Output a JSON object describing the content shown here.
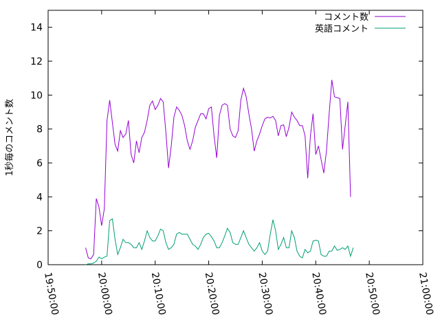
{
  "chart_data": {
    "type": "line",
    "title": "",
    "xlabel": "",
    "ylabel": "1秒毎のコメント数",
    "x_start": "19:50:00",
    "x_end": "21:00:00",
    "x_ticks": [
      "19:50:00",
      "20:00:00",
      "20:10:00",
      "20:20:00",
      "20:30:00",
      "20:40:00",
      "20:50:00",
      "21:00:00"
    ],
    "ylim": [
      0,
      15
    ],
    "y_ticks": [
      "0",
      "2",
      "4",
      "6",
      "8",
      "10",
      "12",
      "14"
    ],
    "legend_position": "top-right",
    "grid": false,
    "series": [
      {
        "name": "コメント数",
        "color": "#9400d3",
        "points": [
          [
            "19:57:00",
            1.0
          ],
          [
            "19:57:30",
            0.4
          ],
          [
            "19:58:00",
            0.35
          ],
          [
            "19:58:30",
            0.6
          ],
          [
            "19:59:00",
            3.9
          ],
          [
            "19:59:30",
            3.4
          ],
          [
            "20:00:00",
            2.3
          ],
          [
            "20:00:30",
            3.3
          ],
          [
            "20:01:00",
            8.5
          ],
          [
            "20:01:30",
            9.7
          ],
          [
            "20:02:00",
            8.4
          ],
          [
            "20:02:30",
            7.1
          ],
          [
            "20:03:00",
            6.7
          ],
          [
            "20:03:30",
            7.9
          ],
          [
            "20:04:00",
            7.5
          ],
          [
            "20:04:30",
            7.7
          ],
          [
            "20:05:00",
            8.5
          ],
          [
            "20:05:30",
            6.5
          ],
          [
            "20:06:00",
            6.0
          ],
          [
            "20:06:30",
            7.3
          ],
          [
            "20:07:00",
            6.6
          ],
          [
            "20:07:30",
            7.5
          ],
          [
            "20:08:00",
            7.8
          ],
          [
            "20:08:30",
            8.5
          ],
          [
            "20:09:00",
            9.4
          ],
          [
            "20:09:30",
            9.65
          ],
          [
            "20:10:00",
            9.15
          ],
          [
            "20:10:30",
            9.4
          ],
          [
            "20:11:00",
            9.8
          ],
          [
            "20:11:30",
            9.6
          ],
          [
            "20:12:00",
            7.8
          ],
          [
            "20:12:30",
            5.7
          ],
          [
            "20:13:00",
            7.0
          ],
          [
            "20:13:30",
            8.7
          ],
          [
            "20:14:00",
            9.3
          ],
          [
            "20:14:30",
            9.1
          ],
          [
            "20:15:00",
            8.8
          ],
          [
            "20:15:30",
            8.2
          ],
          [
            "20:16:00",
            7.3
          ],
          [
            "20:16:30",
            6.8
          ],
          [
            "20:17:00",
            7.3
          ],
          [
            "20:17:30",
            8.1
          ],
          [
            "20:18:00",
            8.5
          ],
          [
            "20:18:30",
            8.9
          ],
          [
            "20:19:00",
            8.9
          ],
          [
            "20:19:30",
            8.6
          ],
          [
            "20:20:00",
            9.2
          ],
          [
            "20:20:30",
            9.3
          ],
          [
            "20:21:00",
            7.6
          ],
          [
            "20:21:30",
            6.3
          ],
          [
            "20:22:00",
            8.8
          ],
          [
            "20:22:30",
            9.4
          ],
          [
            "20:23:00",
            9.5
          ],
          [
            "20:23:30",
            9.4
          ],
          [
            "20:24:00",
            8.0
          ],
          [
            "20:24:30",
            7.6
          ],
          [
            "20:25:00",
            7.5
          ],
          [
            "20:25:30",
            7.9
          ],
          [
            "20:26:00",
            9.7
          ],
          [
            "20:26:30",
            10.4
          ],
          [
            "20:27:00",
            9.9
          ],
          [
            "20:27:30",
            8.9
          ],
          [
            "20:28:00",
            8.0
          ],
          [
            "20:28:30",
            6.7
          ],
          [
            "20:29:00",
            7.3
          ],
          [
            "20:29:30",
            7.7
          ],
          [
            "20:30:00",
            8.2
          ],
          [
            "20:30:30",
            8.6
          ],
          [
            "20:31:00",
            8.7
          ],
          [
            "20:31:30",
            8.65
          ],
          [
            "20:32:00",
            8.75
          ],
          [
            "20:32:30",
            8.5
          ],
          [
            "20:33:00",
            7.6
          ],
          [
            "20:33:30",
            8.2
          ],
          [
            "20:34:00",
            8.25
          ],
          [
            "20:34:30",
            7.55
          ],
          [
            "20:35:00",
            8.1
          ],
          [
            "20:35:30",
            9.0
          ],
          [
            "20:36:00",
            8.7
          ],
          [
            "20:36:30",
            8.5
          ],
          [
            "20:37:00",
            8.2
          ],
          [
            "20:37:30",
            8.2
          ],
          [
            "20:38:00",
            7.6
          ],
          [
            "20:38:30",
            5.1
          ],
          [
            "20:39:00",
            7.6
          ],
          [
            "20:39:30",
            8.9
          ],
          [
            "20:40:00",
            6.5
          ],
          [
            "20:40:30",
            7.0
          ],
          [
            "20:41:00",
            6.2
          ],
          [
            "20:41:30",
            5.4
          ],
          [
            "20:42:00",
            6.7
          ],
          [
            "20:42:30",
            8.9
          ],
          [
            "20:43:00",
            10.9
          ],
          [
            "20:43:30",
            9.9
          ],
          [
            "20:44:00",
            9.85
          ],
          [
            "20:44:30",
            9.8
          ],
          [
            "20:45:00",
            6.8
          ],
          [
            "20:45:30",
            8.2
          ],
          [
            "20:46:00",
            9.6
          ],
          [
            "20:46:30",
            4.0
          ]
        ]
      },
      {
        "name": "英語コメント",
        "color": "#009e73",
        "points": [
          [
            "19:57:00",
            0.0
          ],
          [
            "19:57:30",
            0.05
          ],
          [
            "19:58:00",
            0.05
          ],
          [
            "19:58:30",
            0.1
          ],
          [
            "19:59:00",
            0.2
          ],
          [
            "19:59:30",
            0.45
          ],
          [
            "20:00:00",
            0.35
          ],
          [
            "20:00:30",
            0.45
          ],
          [
            "20:01:00",
            0.5
          ],
          [
            "20:01:30",
            2.6
          ],
          [
            "20:02:00",
            2.7
          ],
          [
            "20:02:30",
            1.5
          ],
          [
            "20:03:00",
            0.6
          ],
          [
            "20:03:30",
            1.0
          ],
          [
            "20:04:00",
            1.5
          ],
          [
            "20:04:30",
            1.3
          ],
          [
            "20:05:00",
            1.3
          ],
          [
            "20:05:30",
            1.2
          ],
          [
            "20:06:00",
            1.0
          ],
          [
            "20:06:30",
            1.0
          ],
          [
            "20:07:00",
            1.3
          ],
          [
            "20:07:30",
            0.9
          ],
          [
            "20:08:00",
            1.4
          ],
          [
            "20:08:30",
            2.0
          ],
          [
            "20:09:00",
            1.6
          ],
          [
            "20:09:30",
            1.4
          ],
          [
            "20:10:00",
            1.4
          ],
          [
            "20:10:30",
            1.7
          ],
          [
            "20:11:00",
            2.1
          ],
          [
            "20:11:30",
            2.0
          ],
          [
            "20:12:00",
            1.3
          ],
          [
            "20:12:30",
            0.9
          ],
          [
            "20:13:00",
            1.0
          ],
          [
            "20:13:30",
            1.2
          ],
          [
            "20:14:00",
            1.8
          ],
          [
            "20:14:30",
            1.9
          ],
          [
            "20:15:00",
            1.8
          ],
          [
            "20:15:30",
            1.8
          ],
          [
            "20:16:00",
            1.8
          ],
          [
            "20:16:30",
            1.5
          ],
          [
            "20:17:00",
            1.2
          ],
          [
            "20:17:30",
            1.1
          ],
          [
            "20:18:00",
            0.9
          ],
          [
            "20:18:30",
            1.2
          ],
          [
            "20:19:00",
            1.6
          ],
          [
            "20:19:30",
            1.8
          ],
          [
            "20:20:00",
            1.85
          ],
          [
            "20:20:30",
            1.65
          ],
          [
            "20:21:00",
            1.4
          ],
          [
            "20:21:30",
            1.0
          ],
          [
            "20:22:00",
            1.0
          ],
          [
            "20:22:30",
            1.3
          ],
          [
            "20:23:00",
            1.7
          ],
          [
            "20:23:30",
            2.15
          ],
          [
            "20:24:00",
            1.9
          ],
          [
            "20:24:30",
            1.3
          ],
          [
            "20:25:00",
            1.2
          ],
          [
            "20:25:30",
            1.2
          ],
          [
            "20:26:00",
            1.6
          ],
          [
            "20:26:30",
            2.0
          ],
          [
            "20:27:00",
            1.6
          ],
          [
            "20:27:30",
            1.2
          ],
          [
            "20:28:00",
            1.0
          ],
          [
            "20:28:30",
            0.8
          ],
          [
            "20:29:00",
            1.0
          ],
          [
            "20:29:30",
            1.3
          ],
          [
            "20:30:00",
            0.8
          ],
          [
            "20:30:30",
            0.6
          ],
          [
            "20:31:00",
            0.8
          ],
          [
            "20:31:30",
            1.8
          ],
          [
            "20:32:00",
            2.65
          ],
          [
            "20:32:30",
            2.0
          ],
          [
            "20:33:00",
            0.9
          ],
          [
            "20:33:30",
            1.2
          ],
          [
            "20:34:00",
            1.6
          ],
          [
            "20:34:30",
            1.0
          ],
          [
            "20:35:00",
            1.0
          ],
          [
            "20:35:30",
            2.0
          ],
          [
            "20:36:00",
            1.6
          ],
          [
            "20:36:30",
            0.8
          ],
          [
            "20:37:00",
            0.5
          ],
          [
            "20:37:30",
            0.4
          ],
          [
            "20:38:00",
            0.9
          ],
          [
            "20:38:30",
            0.7
          ],
          [
            "20:39:00",
            0.8
          ],
          [
            "20:39:30",
            1.4
          ],
          [
            "20:40:00",
            1.45
          ],
          [
            "20:40:30",
            1.4
          ],
          [
            "20:41:00",
            0.6
          ],
          [
            "20:41:30",
            0.5
          ],
          [
            "20:42:00",
            0.5
          ],
          [
            "20:42:30",
            0.8
          ],
          [
            "20:43:00",
            0.8
          ],
          [
            "20:43:30",
            1.1
          ],
          [
            "20:44:00",
            0.85
          ],
          [
            "20:44:30",
            0.9
          ],
          [
            "20:45:00",
            1.0
          ],
          [
            "20:45:30",
            0.9
          ],
          [
            "20:46:00",
            1.1
          ],
          [
            "20:46:30",
            0.5
          ],
          [
            "20:47:00",
            1.0
          ]
        ]
      }
    ]
  }
}
